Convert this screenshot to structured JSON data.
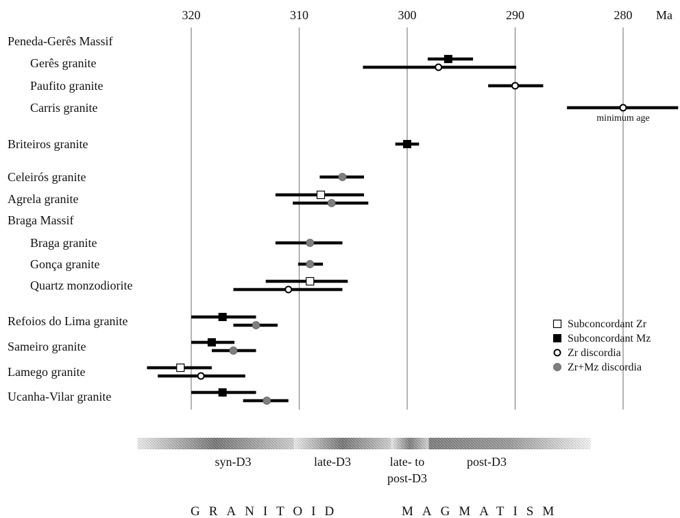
{
  "chart_data": {
    "type": "scatter",
    "unit": "Ma",
    "x_ticks": [
      320,
      310,
      300,
      290,
      280
    ],
    "xlim": [
      337,
      271
    ],
    "x_reversed": true,
    "grid": "vertical lines at tick values",
    "rows": [
      {
        "label": "Peneda-Gerês Massif",
        "indent": false,
        "group_header": true,
        "measurements": []
      },
      {
        "label": "Gerês granite",
        "indent": true,
        "measurements": [
          {
            "method": "Subconcordant Mz",
            "age": 296.2,
            "low": 293.9,
            "high": 298.1
          },
          {
            "method": "Zr discordia",
            "age": 297.1,
            "low": 289.9,
            "high": 304.1
          }
        ]
      },
      {
        "label": "Paufito granite",
        "indent": true,
        "measurements": [
          {
            "method": "Zr discordia",
            "age": 290.0,
            "low": 287.4,
            "high": 292.5
          }
        ]
      },
      {
        "label": "Carris granite",
        "indent": true,
        "note": "minimum age",
        "measurements": [
          {
            "method": "Zr discordia",
            "age": 280.0,
            "low": 274.9,
            "high": 285.2
          }
        ]
      },
      {
        "label": "Briteiros granite",
        "indent": false,
        "measurements": [
          {
            "method": "Subconcordant Mz",
            "age": 300.0,
            "low": 298.9,
            "high": 301.1
          }
        ]
      },
      {
        "label": "Celeirós granite",
        "indent": false,
        "measurements": [
          {
            "method": "Zr+Mz discordia",
            "age": 306.0,
            "low": 304.0,
            "high": 308.1
          }
        ]
      },
      {
        "label": "Agrela granite",
        "indent": false,
        "measurements": [
          {
            "method": "Subconcordant Zr",
            "age": 308.0,
            "low": 304.0,
            "high": 312.2
          },
          {
            "method": "Zr+Mz discordia",
            "age": 307.0,
            "low": 303.6,
            "high": 310.6
          }
        ]
      },
      {
        "label": "Braga Massif",
        "indent": false,
        "group_header": true,
        "measurements": []
      },
      {
        "label": "Braga granite",
        "indent": true,
        "measurements": [
          {
            "method": "Zr+Mz discordia",
            "age": 309.0,
            "low": 306.0,
            "high": 312.2
          }
        ]
      },
      {
        "label": "Gonça granite",
        "indent": true,
        "measurements": [
          {
            "method": "Zr+Mz discordia",
            "age": 309.0,
            "low": 307.8,
            "high": 310.1
          }
        ]
      },
      {
        "label": "Quartz monzodiorite",
        "indent": true,
        "measurements": [
          {
            "method": "Subconcordant Zr",
            "age": 309.0,
            "low": 305.5,
            "high": 313.1
          },
          {
            "method": "Zr discordia",
            "age": 311.0,
            "low": 306.0,
            "high": 316.1
          }
        ]
      },
      {
        "label": "Refoios do Lima granite",
        "indent": false,
        "measurements": [
          {
            "method": "Subconcordant Mz",
            "age": 317.1,
            "low": 314.0,
            "high": 320.0
          },
          {
            "method": "Zr+Mz discordia",
            "age": 314.0,
            "low": 312.0,
            "high": 316.1
          }
        ]
      },
      {
        "label": "Sameiro granite",
        "indent": false,
        "measurements": [
          {
            "method": "Subconcordant Mz",
            "age": 318.1,
            "low": 316.0,
            "high": 320.0
          },
          {
            "method": "Zr+Mz discordia",
            "age": 316.1,
            "low": 314.0,
            "high": 318.1
          }
        ]
      },
      {
        "label": "Lamego granite",
        "indent": false,
        "measurements": [
          {
            "method": "Subconcordant Zr",
            "age": 321.0,
            "low": 318.1,
            "high": 324.1
          },
          {
            "method": "Zr discordia",
            "age": 319.1,
            "low": 315.0,
            "high": 323.1
          }
        ]
      },
      {
        "label": "Ucanha-Vilar granite",
        "indent": false,
        "measurements": [
          {
            "method": "Subconcordant Mz",
            "age": 317.1,
            "low": 314.0,
            "high": 320.0
          },
          {
            "method": "Zr+Mz discordia",
            "age": 313.0,
            "low": 311.0,
            "high": 315.2
          }
        ]
      }
    ],
    "legend": {
      "placement": "right",
      "entries": [
        {
          "label": "Subconcordant Zr",
          "marker": "open-square"
        },
        {
          "label": "Subconcordant Mz",
          "marker": "filled-square"
        },
        {
          "label": "Zr discordia",
          "marker": "open-circle"
        },
        {
          "label": "Zr+Mz discordia",
          "marker": "gray-circle"
        }
      ]
    },
    "phases": [
      {
        "label": "syn-D3",
        "from": 325,
        "to": 310.5
      },
      {
        "label": "late-D3",
        "from": 310.5,
        "to": 301.5
      },
      {
        "label": "late- to post-D3",
        "label_lines": [
          "late- to",
          "post-D3"
        ],
        "from": 301.5,
        "to": 298
      },
      {
        "label": "post-D3",
        "from": 298,
        "to": 283
      }
    ],
    "footer": "GRANITOID MAGMATISM",
    "footer_words": [
      "GRANITOID",
      "MAGMATISM"
    ],
    "colors": {
      "bar": "#0a0a0a",
      "gridline": "#8a8a8a",
      "zrmz_marker": "#7f7f7f",
      "phase_band": "#6e6e6e"
    }
  }
}
